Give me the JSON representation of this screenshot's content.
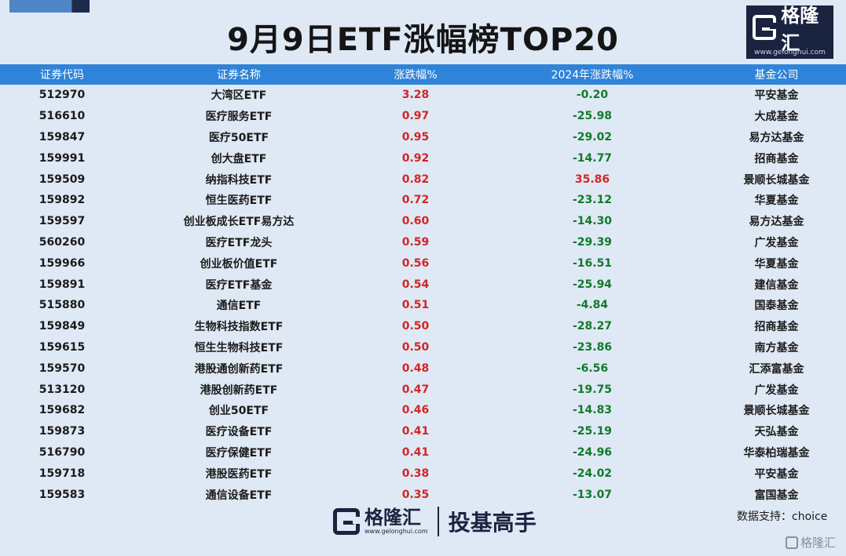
{
  "title": "9月9日ETF涨幅榜TOP20",
  "brand": {
    "name": "格隆汇",
    "url": "www.gelonghui.com"
  },
  "columns": [
    "证券代码",
    "证券名称",
    "涨跌幅%",
    "2024年涨跌幅%",
    "基金公司"
  ],
  "rows": [
    {
      "code": "512970",
      "name": "大湾区ETF",
      "change": "3.28",
      "ytd": "-0.20",
      "company": "平安基金"
    },
    {
      "code": "516610",
      "name": "医疗服务ETF",
      "change": "0.97",
      "ytd": "-25.98",
      "company": "大成基金"
    },
    {
      "code": "159847",
      "name": "医疗50ETF",
      "change": "0.95",
      "ytd": "-29.02",
      "company": "易方达基金"
    },
    {
      "code": "159991",
      "name": "创大盘ETF",
      "change": "0.92",
      "ytd": "-14.77",
      "company": "招商基金"
    },
    {
      "code": "159509",
      "name": "纳指科技ETF",
      "change": "0.82",
      "ytd": "35.86",
      "company": "景顺长城基金"
    },
    {
      "code": "159892",
      "name": "恒生医药ETF",
      "change": "0.72",
      "ytd": "-23.12",
      "company": "华夏基金"
    },
    {
      "code": "159597",
      "name": "创业板成长ETF易方达",
      "change": "0.60",
      "ytd": "-14.30",
      "company": "易方达基金"
    },
    {
      "code": "560260",
      "name": "医疗ETF龙头",
      "change": "0.59",
      "ytd": "-29.39",
      "company": "广发基金"
    },
    {
      "code": "159966",
      "name": "创业板价值ETF",
      "change": "0.56",
      "ytd": "-16.51",
      "company": "华夏基金"
    },
    {
      "code": "159891",
      "name": "医疗ETF基金",
      "change": "0.54",
      "ytd": "-25.94",
      "company": "建信基金"
    },
    {
      "code": "515880",
      "name": "通信ETF",
      "change": "0.51",
      "ytd": "-4.84",
      "company": "国泰基金"
    },
    {
      "code": "159849",
      "name": "生物科技指数ETF",
      "change": "0.50",
      "ytd": "-28.27",
      "company": "招商基金"
    },
    {
      "code": "159615",
      "name": "恒生生物科技ETF",
      "change": "0.50",
      "ytd": "-23.86",
      "company": "南方基金"
    },
    {
      "code": "159570",
      "name": "港股通创新药ETF",
      "change": "0.48",
      "ytd": "-6.56",
      "company": "汇添富基金"
    },
    {
      "code": "513120",
      "name": "港股创新药ETF",
      "change": "0.47",
      "ytd": "-19.75",
      "company": "广发基金"
    },
    {
      "code": "159682",
      "name": "创业50ETF",
      "change": "0.46",
      "ytd": "-14.83",
      "company": "景顺长城基金"
    },
    {
      "code": "159873",
      "name": "医疗设备ETF",
      "change": "0.41",
      "ytd": "-25.19",
      "company": "天弘基金"
    },
    {
      "code": "516790",
      "name": "医疗保健ETF",
      "change": "0.41",
      "ytd": "-24.96",
      "company": "华泰柏瑞基金"
    },
    {
      "code": "159718",
      "name": "港股医药ETF",
      "change": "0.38",
      "ytd": "-24.02",
      "company": "平安基金"
    },
    {
      "code": "159583",
      "name": "通信设备ETF",
      "change": "0.35",
      "ytd": "-13.07",
      "company": "富国基金"
    }
  ],
  "footer": {
    "logo_name": "格隆汇",
    "logo_url": "www.gelonghui.com",
    "slogan": "投基高手"
  },
  "source": "数据支持：choice",
  "watermark": "格隆汇",
  "colors": {
    "header_bg": "#2f83d8",
    "positive": "#d62424",
    "negative": "#127a2a",
    "background": "#dfe9f5",
    "brand": "#1a2440"
  }
}
